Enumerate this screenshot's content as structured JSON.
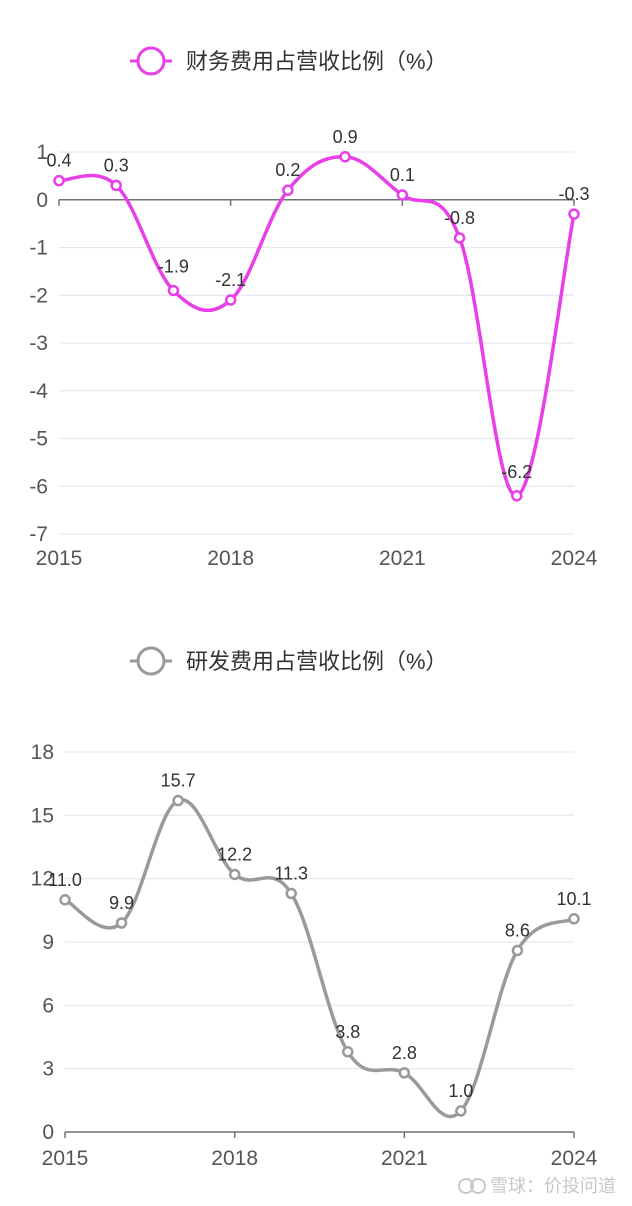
{
  "chart_data": [
    {
      "type": "line",
      "x": [
        "2015",
        "2016",
        "2017",
        "2018",
        "2019",
        "2020",
        "2021",
        "2022",
        "2023",
        "2024"
      ],
      "series": [
        {
          "name": "财务费用占营收比例（%）",
          "values": [
            0.4,
            0.3,
            -1.9,
            -2.1,
            0.2,
            0.9,
            0.1,
            -0.8,
            -6.2,
            -0.3
          ]
        }
      ],
      "data_labels": [
        "0.4",
        "0.3",
        "-1.9",
        "-2.1",
        "0.2",
        "0.9",
        "0.1",
        "-0.8",
        "-6.2",
        "-0.3"
      ],
      "x_tick_labels": [
        "2015",
        "2018",
        "2021",
        "2024"
      ],
      "y_tick_labels": [
        "1",
        "0",
        "-1",
        "-2",
        "-3",
        "-4",
        "-5",
        "-6",
        "-7"
      ],
      "ylim": [
        -7,
        1
      ],
      "grid": true,
      "legend_position": "top-center",
      "color": "#e83fe8"
    },
    {
      "type": "line",
      "x": [
        "2015",
        "2016",
        "2017",
        "2018",
        "2019",
        "2020",
        "2021",
        "2022",
        "2023",
        "2024"
      ],
      "series": [
        {
          "name": "研发费用占营收比例（%）",
          "values": [
            11.0,
            9.9,
            15.7,
            12.2,
            11.3,
            3.8,
            2.8,
            1.0,
            8.6,
            10.1
          ]
        }
      ],
      "data_labels": [
        "11.0",
        "9.9",
        "15.7",
        "12.2",
        "11.3",
        "3.8",
        "2.8",
        "1.0",
        "8.6",
        "10.1"
      ],
      "x_tick_labels": [
        "2015",
        "2018",
        "2021",
        "2024"
      ],
      "y_tick_labels": [
        "18",
        "15",
        "12",
        "9",
        "6",
        "3",
        "0"
      ],
      "ylim": [
        0,
        18
      ],
      "grid": true,
      "legend_position": "top-center",
      "color": "#9a9a9a"
    }
  ],
  "watermark": {
    "text": "雪球：价投问道",
    "icon": "snowball-logo-icon"
  }
}
